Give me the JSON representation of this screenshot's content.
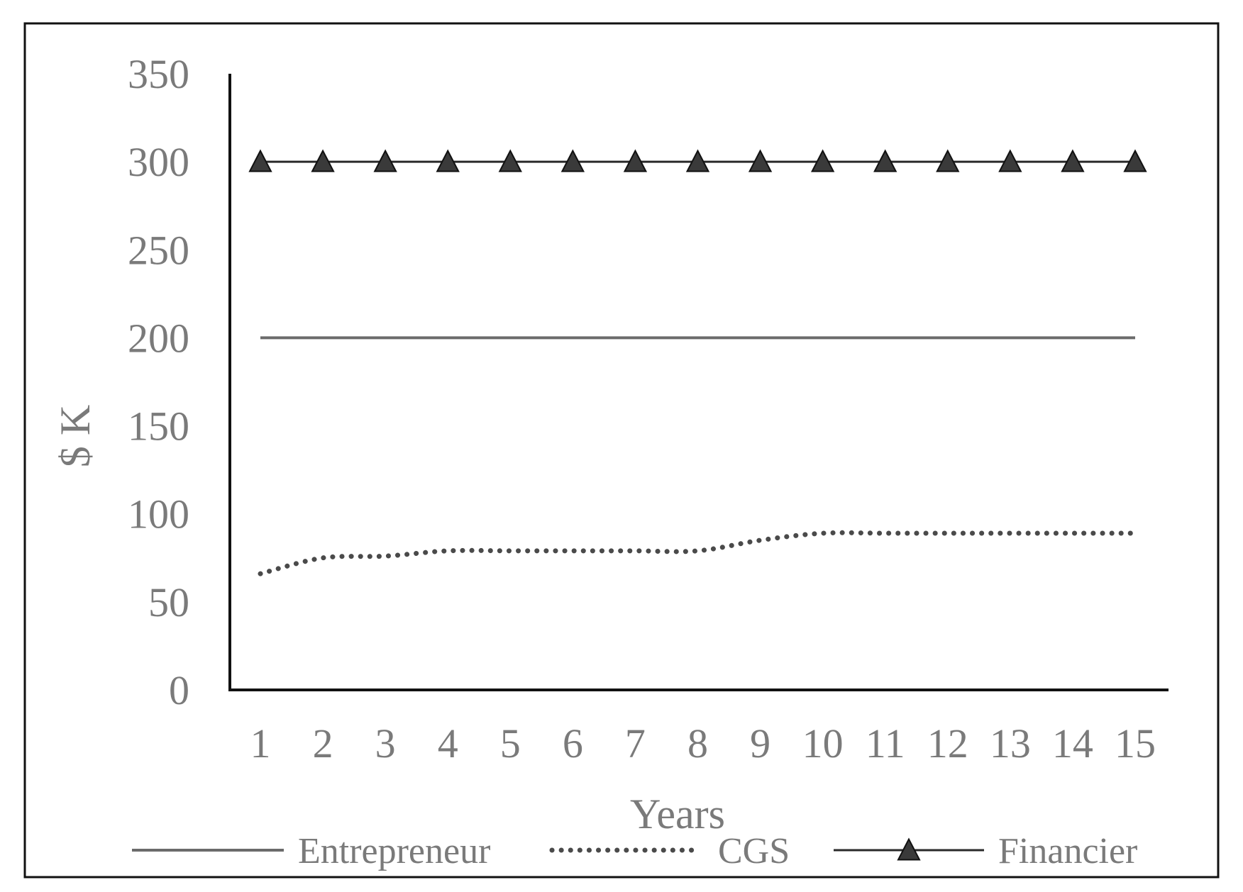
{
  "chart_data": {
    "type": "line",
    "xlabel": "Years",
    "ylabel": "$ K",
    "ylim": [
      0,
      350
    ],
    "yticks": [
      0,
      50,
      100,
      150,
      200,
      250,
      300,
      350
    ],
    "categories": [
      "1",
      "2",
      "3",
      "4",
      "5",
      "6",
      "7",
      "8",
      "9",
      "10",
      "11",
      "12",
      "13",
      "14",
      "15"
    ],
    "grid": false,
    "legend_position": "bottom",
    "series": [
      {
        "name": "Entrepreneur",
        "style": "solid",
        "color": "#6b6b6b",
        "values": [
          200,
          200,
          200,
          200,
          200,
          200,
          200,
          200,
          200,
          200,
          200,
          200,
          200,
          200,
          200
        ]
      },
      {
        "name": "CGS",
        "style": "dotted",
        "color": "#4a4a4a",
        "values": [
          66,
          75,
          76,
          79,
          79,
          79,
          79,
          79,
          85,
          89,
          89,
          89,
          89,
          89,
          89
        ]
      },
      {
        "name": "Financier",
        "style": "solid-triangle-markers",
        "color": "#2a2a2a",
        "values": [
          300,
          300,
          300,
          300,
          300,
          300,
          300,
          300,
          300,
          300,
          300,
          300,
          300,
          300,
          300
        ]
      }
    ]
  }
}
